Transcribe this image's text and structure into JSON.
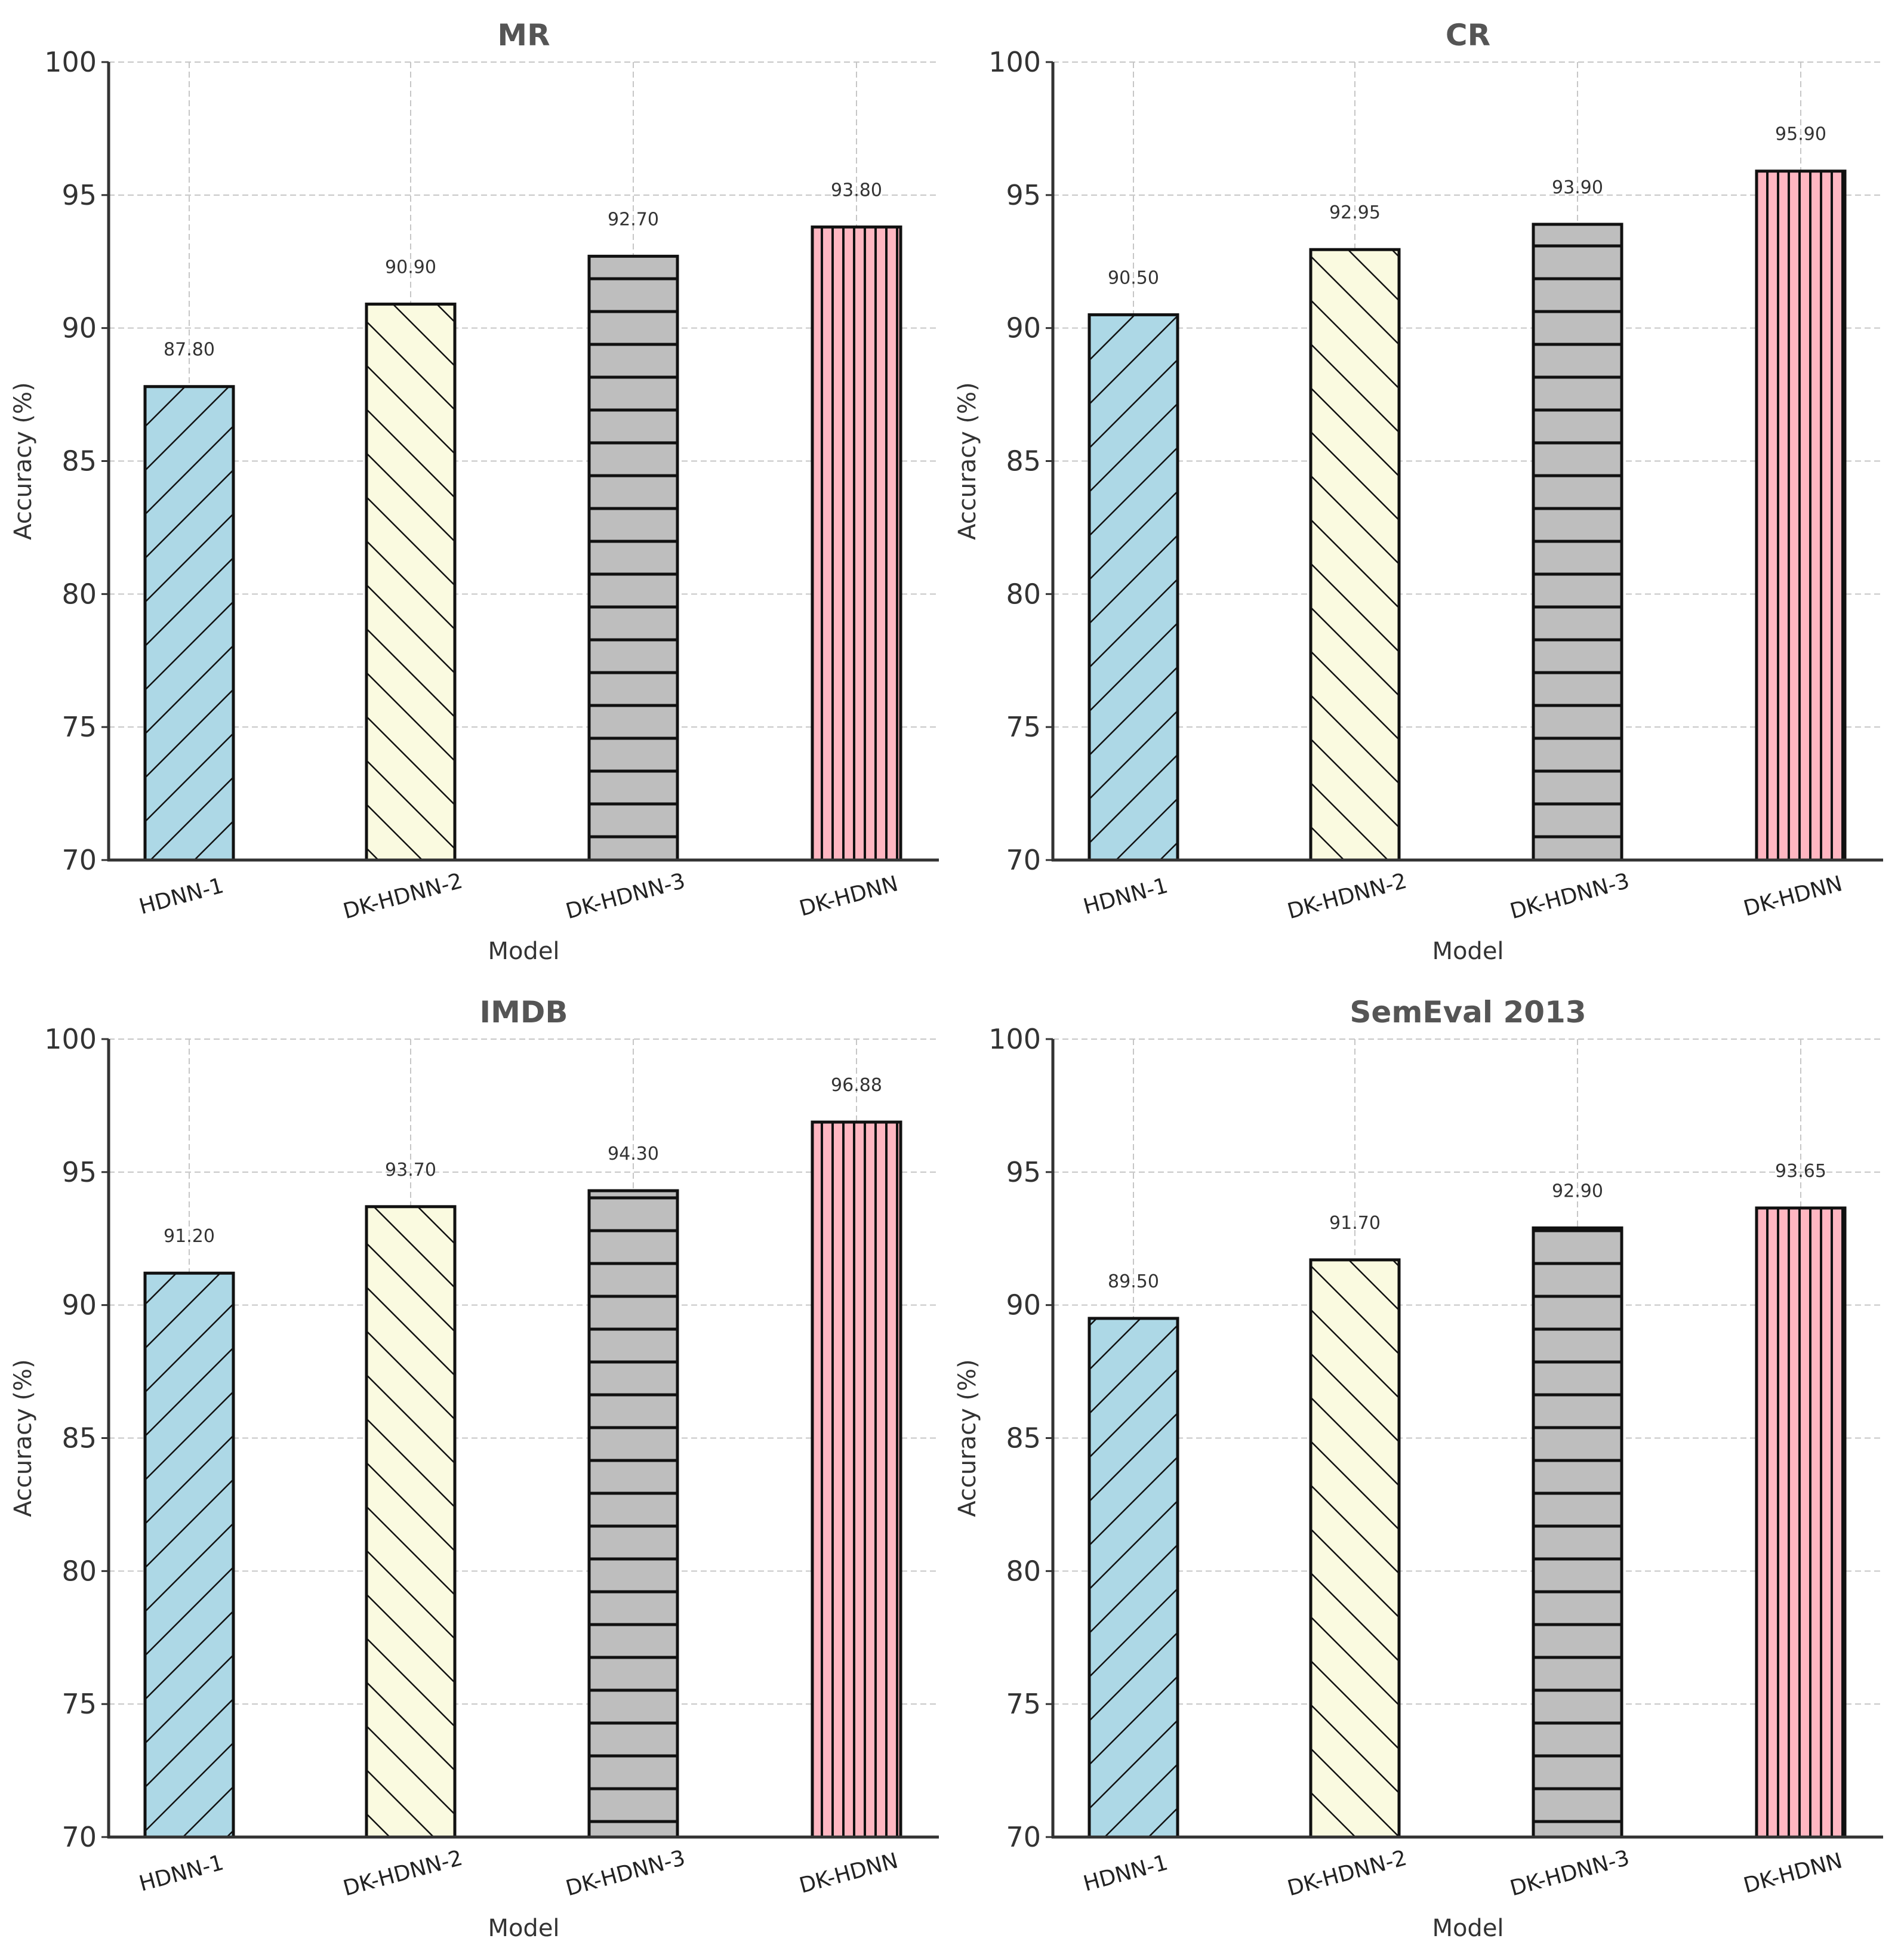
{
  "colors": {
    "hdnn1": "#add8e6",
    "dkhdnn2": "#fafae0",
    "dkhdnn3": "#bebebe",
    "dkhdnn": "#ffb6c1",
    "title": "#555555",
    "grid": "#c6c6c6"
  },
  "chart_data": [
    {
      "type": "bar",
      "title": "MR",
      "xlabel": "Model",
      "ylabel": "Accuracy (%)",
      "ylim": [
        70,
        100
      ],
      "yticks": [
        70,
        75,
        80,
        85,
        90,
        95,
        100
      ],
      "grid": true,
      "categories": [
        "HDNN-1",
        "DK-HDNN-2",
        "DK-HDNN-3",
        "DK-HDNN"
      ],
      "values": [
        87.8,
        90.9,
        92.7,
        93.8
      ],
      "value_labels": [
        "87.80",
        "90.90",
        "92.70",
        "93.80"
      ],
      "hatches": [
        "forward",
        "back",
        "horizontal",
        "vertical"
      ],
      "colors": [
        "#add8e6",
        "#fafae0",
        "#bebebe",
        "#ffb6c1"
      ]
    },
    {
      "type": "bar",
      "title": "CR",
      "xlabel": "Model",
      "ylabel": "Accuracy (%)",
      "ylim": [
        70,
        100
      ],
      "yticks": [
        70,
        75,
        80,
        85,
        90,
        95,
        100
      ],
      "grid": true,
      "categories": [
        "HDNN-1",
        "DK-HDNN-2",
        "DK-HDNN-3",
        "DK-HDNN"
      ],
      "values": [
        90.5,
        92.95,
        93.9,
        95.9
      ],
      "value_labels": [
        "90.50",
        "92.95",
        "93.90",
        "95.90"
      ],
      "hatches": [
        "forward",
        "back",
        "horizontal",
        "vertical"
      ],
      "colors": [
        "#add8e6",
        "#fafae0",
        "#bebebe",
        "#ffb6c1"
      ]
    },
    {
      "type": "bar",
      "title": "IMDB",
      "xlabel": "Model",
      "ylabel": "Accuracy (%)",
      "ylim": [
        70,
        100
      ],
      "yticks": [
        70,
        75,
        80,
        85,
        90,
        95,
        100
      ],
      "grid": true,
      "categories": [
        "HDNN-1",
        "DK-HDNN-2",
        "DK-HDNN-3",
        "DK-HDNN"
      ],
      "values": [
        91.2,
        93.7,
        94.3,
        96.88
      ],
      "value_labels": [
        "91.20",
        "93.70",
        "94.30",
        "96.88"
      ],
      "hatches": [
        "forward",
        "back",
        "horizontal",
        "vertical"
      ],
      "colors": [
        "#add8e6",
        "#fafae0",
        "#bebebe",
        "#ffb6c1"
      ]
    },
    {
      "type": "bar",
      "title": "SemEval 2013",
      "xlabel": "Model",
      "ylabel": "Accuracy (%)",
      "ylim": [
        70,
        100
      ],
      "yticks": [
        70,
        75,
        80,
        85,
        90,
        95,
        100
      ],
      "grid": true,
      "categories": [
        "HDNN-1",
        "DK-HDNN-2",
        "DK-HDNN-3",
        "DK-HDNN"
      ],
      "values": [
        89.5,
        91.7,
        92.9,
        93.65
      ],
      "value_labels": [
        "89.50",
        "91.70",
        "92.90",
        "93.65"
      ],
      "hatches": [
        "forward",
        "back",
        "horizontal",
        "vertical"
      ],
      "colors": [
        "#add8e6",
        "#fafae0",
        "#bebebe",
        "#ffb6c1"
      ]
    }
  ]
}
